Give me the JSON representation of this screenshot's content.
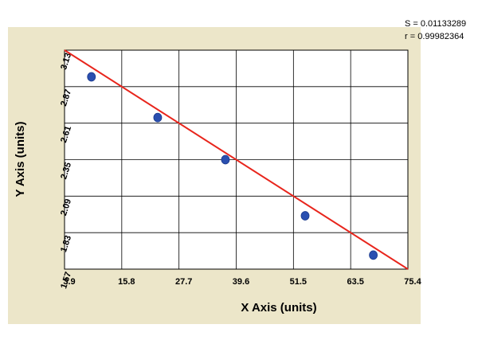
{
  "stats": {
    "s_line": "S = 0.01133289",
    "r_line": "r = 0.99982364"
  },
  "colors": {
    "panel_bg": "#ece6c9",
    "plot_bg": "#ffffff",
    "grid": "#000000",
    "fit_line": "#e8251c",
    "points": "#2a4fb0"
  },
  "chart_data": {
    "type": "scatter",
    "title": "",
    "xlabel": "X Axis (units)",
    "ylabel": "Y Axis (units)",
    "xlim": [
      3.9,
      75.4
    ],
    "ylim": [
      1.57,
      3.13
    ],
    "grid": true,
    "x_ticks": [
      "3.9",
      "15.8",
      "27.7",
      "39.6",
      "51.5",
      "63.5",
      "75.4"
    ],
    "y_ticks": [
      "1.57",
      "1.83",
      "2.09",
      "2.35",
      "2.61",
      "2.87",
      "3.13"
    ],
    "points": [
      {
        "x": 9.5,
        "y": 2.94
      },
      {
        "x": 23.3,
        "y": 2.65
      },
      {
        "x": 37.4,
        "y": 2.35
      },
      {
        "x": 54.0,
        "y": 1.95
      },
      {
        "x": 68.2,
        "y": 1.67
      }
    ],
    "fit_line": {
      "x": [
        3.9,
        75.4
      ],
      "y": [
        3.13,
        1.57
      ]
    }
  }
}
